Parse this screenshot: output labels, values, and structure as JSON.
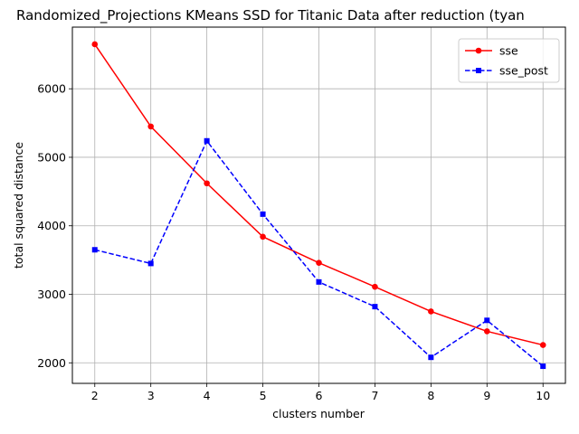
{
  "chart_data": {
    "type": "line",
    "title": "Randomized_Projections KMeans SSD for Titanic Data after reduction (tyan",
    "xlabel": "clusters number",
    "ylabel": "total squared distance",
    "x": [
      2,
      3,
      4,
      5,
      6,
      7,
      8,
      9,
      10
    ],
    "xlim": [
      1.6,
      10.4
    ],
    "ylim": [
      1700,
      6900
    ],
    "xticks": [
      "2",
      "3",
      "4",
      "5",
      "6",
      "7",
      "8",
      "9",
      "10"
    ],
    "yticks": [
      "2000",
      "3000",
      "4000",
      "5000",
      "6000"
    ],
    "grid": true,
    "legend_position": "top-right",
    "series": [
      {
        "name": "sse",
        "color": "#ff0000",
        "line_style": "solid",
        "marker": "circle",
        "values": [
          6650,
          5450,
          4620,
          3840,
          3460,
          3110,
          2750,
          2460,
          2260
        ]
      },
      {
        "name": "sse_post",
        "color": "#0000ff",
        "line_style": "dashed",
        "marker": "square",
        "values": [
          3650,
          3450,
          5240,
          4170,
          3180,
          2820,
          2080,
          2620,
          1950
        ]
      }
    ]
  }
}
